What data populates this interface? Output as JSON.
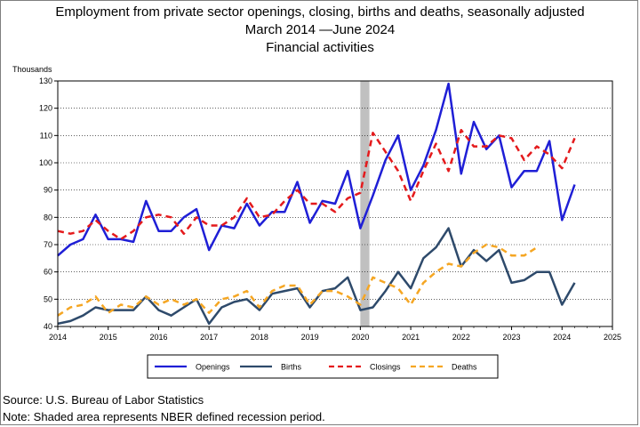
{
  "title": {
    "line1": "Employment from private sector openings, closing, births and deaths, seasonally adjusted",
    "line2": "March 2014 —June 2024",
    "line3": "Financial activities"
  },
  "unit_label": "Thousands",
  "source": "Source: U.S. Bureau of Labor Statistics",
  "note": "Note: Shaded area represents NBER defined recession period.",
  "chart_data": {
    "type": "line",
    "title": "Employment from private sector openings, closing, births and deaths, seasonally adjusted",
    "subtitle": "Financial activities",
    "ylabel": "Thousands",
    "xlim": [
      2014,
      2025
    ],
    "ylim": [
      40,
      130
    ],
    "x_ticks": [
      "2014",
      "2015",
      "2016",
      "2017",
      "2018",
      "2019",
      "2020",
      "2021",
      "2022",
      "2023",
      "2024",
      "2025"
    ],
    "y_ticks": [
      "40",
      "50",
      "60",
      "70",
      "80",
      "90",
      "100",
      "110",
      "120",
      "130"
    ],
    "legend_position": "bottom",
    "recession": {
      "start": "2020-Q1",
      "end": "2020-Q2"
    },
    "grid": true,
    "series": [
      {
        "name": "Openings",
        "color": "#1f1fd6",
        "style": "solid",
        "x": [
          2014.0,
          2014.25,
          2014.5,
          2014.75,
          2015.0,
          2015.25,
          2015.5,
          2015.75,
          2016.0,
          2016.25,
          2016.5,
          2016.75,
          2017.0,
          2017.25,
          2017.5,
          2017.75,
          2018.0,
          2018.25,
          2018.5,
          2018.75,
          2019.0,
          2019.25,
          2019.5,
          2019.75,
          2020.0,
          2020.25,
          2020.5,
          2020.75,
          2021.0,
          2021.25,
          2021.5,
          2021.75,
          2022.0,
          2022.25,
          2022.5,
          2022.75,
          2023.0,
          2023.25,
          2023.5,
          2023.75,
          2024.0,
          2024.25
        ],
        "values": [
          66,
          70,
          72,
          81,
          72,
          72,
          71,
          86,
          75,
          75,
          80,
          83,
          68,
          77,
          76,
          85,
          77,
          82,
          82,
          93,
          78,
          86,
          85,
          97,
          76,
          88,
          101,
          110,
          90,
          99,
          112,
          129,
          96,
          115,
          105,
          110,
          91,
          97,
          97,
          108,
          79,
          92
        ]
      },
      {
        "name": "Births",
        "color": "#2e4a6b",
        "style": "solid",
        "x": [
          2014.0,
          2014.25,
          2014.5,
          2014.75,
          2015.0,
          2015.25,
          2015.5,
          2015.75,
          2016.0,
          2016.25,
          2016.5,
          2016.75,
          2017.0,
          2017.25,
          2017.5,
          2017.75,
          2018.0,
          2018.25,
          2018.5,
          2018.75,
          2019.0,
          2019.25,
          2019.5,
          2019.75,
          2020.0,
          2020.25,
          2020.5,
          2020.75,
          2021.0,
          2021.25,
          2021.5,
          2021.75,
          2022.0,
          2022.25,
          2022.5,
          2022.75,
          2023.0,
          2023.25,
          2023.5,
          2023.75,
          2024.0,
          2024.25
        ],
        "values": [
          41,
          42,
          44,
          47,
          46,
          46,
          46,
          51,
          46,
          44,
          47,
          50,
          41,
          47,
          49,
          50,
          46,
          52,
          53,
          54,
          47,
          53,
          54,
          58,
          46,
          47,
          53,
          60,
          54,
          65,
          69,
          76,
          62,
          68,
          64,
          68,
          56,
          57,
          60,
          60,
          48,
          56
        ]
      },
      {
        "name": "Closings",
        "color": "#e41a1c",
        "style": "dashed",
        "x": [
          2014.0,
          2014.25,
          2014.5,
          2014.75,
          2015.0,
          2015.25,
          2015.5,
          2015.75,
          2016.0,
          2016.25,
          2016.5,
          2016.75,
          2017.0,
          2017.25,
          2017.5,
          2017.75,
          2018.0,
          2018.25,
          2018.5,
          2018.75,
          2019.0,
          2019.25,
          2019.5,
          2019.75,
          2020.0,
          2020.25,
          2020.5,
          2020.75,
          2021.0,
          2021.25,
          2021.5,
          2021.75,
          2022.0,
          2022.25,
          2022.5,
          2022.75,
          2023.0,
          2023.25,
          2023.5,
          2023.75,
          2024.0,
          2024.25
        ],
        "values": [
          75,
          74,
          75,
          79,
          75,
          72,
          75,
          80,
          81,
          80,
          74,
          80,
          77,
          77,
          80,
          87,
          80,
          81,
          86,
          90,
          85,
          85,
          82,
          87,
          89,
          111,
          104,
          97,
          86,
          97,
          107,
          97,
          112,
          106,
          106,
          110,
          109,
          101,
          106,
          103,
          98,
          109
        ]
      },
      {
        "name": "Deaths",
        "color": "#f5a623",
        "style": "dashed",
        "x": [
          2014.0,
          2014.25,
          2014.5,
          2014.75,
          2015.0,
          2015.25,
          2015.5,
          2015.75,
          2016.0,
          2016.25,
          2016.5,
          2016.75,
          2017.0,
          2017.25,
          2017.5,
          2017.75,
          2018.0,
          2018.25,
          2018.5,
          2018.75,
          2019.0,
          2019.25,
          2019.5,
          2019.75,
          2020.0,
          2020.25,
          2020.5,
          2020.75,
          2021.0,
          2021.25,
          2021.5,
          2021.75,
          2022.0,
          2022.25,
          2022.5,
          2022.75,
          2023.0,
          2023.25,
          2023.5
        ],
        "values": [
          44,
          47,
          48,
          51,
          45,
          48,
          47,
          51,
          48,
          50,
          48,
          50,
          45,
          50,
          51,
          53,
          47,
          53,
          55,
          55,
          48,
          53,
          53,
          51,
          48,
          58,
          56,
          54,
          48,
          56,
          60,
          63,
          62,
          67,
          70,
          69,
          66,
          66,
          69
        ]
      }
    ]
  }
}
